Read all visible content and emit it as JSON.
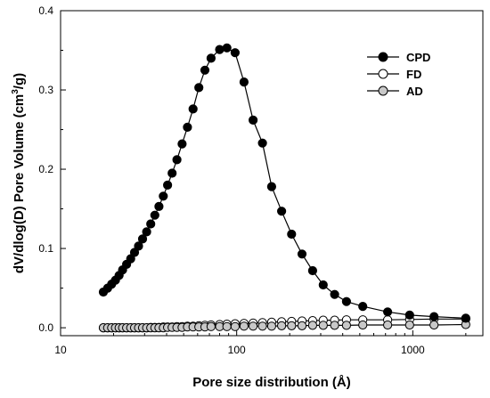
{
  "chart_data": {
    "type": "line",
    "title": "",
    "xlabel": "Pore size distribution (Å)",
    "ylabel_main": "dV/dlog(D) Pore Volume (cm",
    "ylabel_sup": "3",
    "ylabel_end": "/g)",
    "x_scale": "log",
    "xlim": [
      10,
      2500
    ],
    "ylim": [
      -0.01,
      0.4
    ],
    "x_ticks": [
      {
        "value": 10,
        "label": "10"
      },
      {
        "value": 100,
        "label": "100"
      },
      {
        "value": 1000,
        "label": "1000"
      }
    ],
    "y_ticks": [
      {
        "value": 0.0,
        "label": "0.0"
      },
      {
        "value": 0.1,
        "label": "0.1"
      },
      {
        "value": 0.2,
        "label": "0.2"
      },
      {
        "value": 0.3,
        "label": "0.3"
      },
      {
        "value": 0.4,
        "label": "0.4"
      }
    ],
    "grid": false,
    "legend_position": "top-right",
    "series": [
      {
        "name": "CPD",
        "marker_fill": "#000000",
        "x": [
          17.5,
          18.5,
          19.5,
          20.5,
          21.5,
          22.5,
          23.7,
          25,
          26.3,
          27.7,
          29.2,
          30.8,
          32.5,
          34.3,
          36.2,
          38.3,
          40.5,
          43,
          45.8,
          49,
          52.5,
          56.5,
          61,
          66,
          71.5,
          80,
          88,
          98,
          110,
          124,
          140,
          158,
          180,
          205,
          235,
          270,
          310,
          360,
          420,
          520,
          720,
          960,
          1320,
          2000
        ],
        "y": [
          0.045,
          0.05,
          0.055,
          0.06,
          0.066,
          0.073,
          0.08,
          0.087,
          0.095,
          0.103,
          0.112,
          0.121,
          0.131,
          0.142,
          0.153,
          0.166,
          0.18,
          0.195,
          0.212,
          0.232,
          0.253,
          0.276,
          0.303,
          0.325,
          0.34,
          0.351,
          0.353,
          0.347,
          0.31,
          0.262,
          0.233,
          0.178,
          0.147,
          0.118,
          0.093,
          0.072,
          0.054,
          0.042,
          0.033,
          0.027,
          0.02,
          0.016,
          0.014,
          0.012
        ]
      },
      {
        "name": "FD",
        "marker_fill": "#ffffff",
        "x": [
          17.5,
          18.5,
          19.5,
          20.5,
          21.5,
          22.5,
          23.7,
          25,
          26.3,
          27.7,
          29.2,
          30.8,
          32.5,
          34.3,
          36.2,
          38.3,
          40.5,
          43,
          45.8,
          49,
          52.5,
          56.5,
          61,
          66,
          71.5,
          80,
          88,
          98,
          110,
          124,
          140,
          158,
          180,
          205,
          235,
          270,
          310,
          360,
          420,
          520,
          720,
          960,
          1320,
          2000
        ],
        "y": [
          0.0,
          0.0,
          0.0,
          0.0,
          0.0,
          0.0,
          0.0,
          0.0,
          0.0,
          0.0,
          0.0,
          0.0,
          0.0005,
          0.0005,
          0.0005,
          0.001,
          0.001,
          0.001,
          0.0015,
          0.0015,
          0.002,
          0.002,
          0.0025,
          0.003,
          0.0035,
          0.004,
          0.0045,
          0.005,
          0.0055,
          0.006,
          0.0065,
          0.007,
          0.0075,
          0.008,
          0.0085,
          0.009,
          0.0095,
          0.0095,
          0.01,
          0.01,
          0.01,
          0.0105,
          0.011,
          0.011
        ]
      },
      {
        "name": "AD",
        "marker_fill": "#c8c8c8",
        "x": [
          17.5,
          18.5,
          19.5,
          20.5,
          21.5,
          22.5,
          23.7,
          25,
          26.3,
          27.7,
          29.2,
          30.8,
          32.5,
          34.3,
          36.2,
          38.3,
          40.5,
          43,
          45.8,
          49,
          52.5,
          56.5,
          61,
          66,
          71.5,
          80,
          88,
          98,
          110,
          124,
          140,
          158,
          180,
          205,
          235,
          270,
          310,
          360,
          420,
          520,
          720,
          960,
          1320,
          2000
        ],
        "y": [
          0.0,
          0.0,
          0.0,
          0.0,
          0.0,
          0.0,
          0.0,
          0.0,
          0.0,
          0.0,
          0.0,
          0.0,
          0.0,
          0.0,
          0.0,
          0.0,
          0.0005,
          0.0005,
          0.0005,
          0.0005,
          0.001,
          0.001,
          0.001,
          0.001,
          0.0015,
          0.0015,
          0.0015,
          0.0015,
          0.002,
          0.002,
          0.002,
          0.002,
          0.0025,
          0.0025,
          0.0025,
          0.003,
          0.003,
          0.003,
          0.003,
          0.0035,
          0.0035,
          0.0035,
          0.0035,
          0.004
        ]
      }
    ]
  }
}
